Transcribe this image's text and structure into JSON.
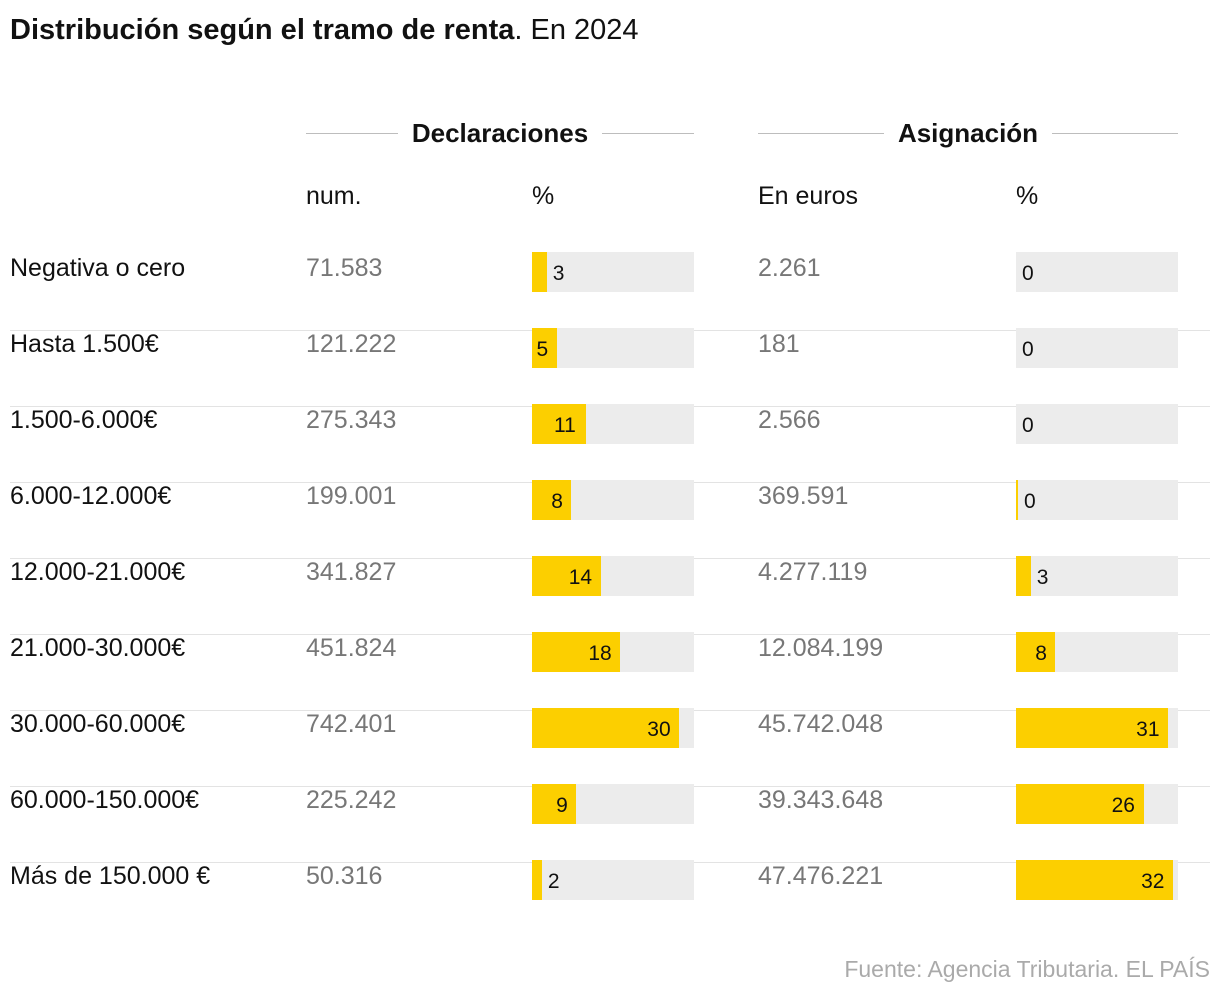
{
  "title": {
    "bold": "Distribución según el tramo de renta",
    "rest": ". En 2024"
  },
  "groups": {
    "declaraciones": "Declaraciones",
    "asignacion": "Asignación"
  },
  "columns": {
    "num": "num.",
    "pct1": "%",
    "euros": "En euros",
    "pct2": "%"
  },
  "colors": {
    "bar": "#fccf00",
    "track": "#ececec"
  },
  "chart_data": {
    "type": "table",
    "rows": [
      {
        "tramo": "Negativa o cero",
        "num": "71.583",
        "decl_pct": 3,
        "euros": "2.261",
        "asig_pct": 0
      },
      {
        "tramo": "Hasta 1.500€",
        "num": "121.222",
        "decl_pct": 5,
        "euros": "181",
        "asig_pct": 0
      },
      {
        "tramo": "1.500-6.000€",
        "num": "275.343",
        "decl_pct": 11,
        "euros": "2.566",
        "asig_pct": 0
      },
      {
        "tramo": "6.000-12.000€",
        "num": "199.001",
        "decl_pct": 8,
        "euros": "369.591",
        "asig_pct": 0
      },
      {
        "tramo": "12.000-21.000€",
        "num": "341.827",
        "decl_pct": 14,
        "euros": "4.277.119",
        "asig_pct": 3
      },
      {
        "tramo": "21.000-30.000€",
        "num": "451.824",
        "decl_pct": 18,
        "euros": "12.084.199",
        "asig_pct": 8
      },
      {
        "tramo": "30.000-60.000€",
        "num": "742.401",
        "decl_pct": 30,
        "euros": "45.742.048",
        "asig_pct": 31
      },
      {
        "tramo": "60.000-150.000€",
        "num": "225.242",
        "decl_pct": 9,
        "euros": "39.343.648",
        "asig_pct": 26
      },
      {
        "tramo": "Más de 150.000 €",
        "num": "50.316",
        "decl_pct": 2,
        "euros": "47.476.221",
        "asig_pct": 32
      }
    ],
    "pct_range": [
      0,
      33
    ]
  },
  "source": "Fuente: Agencia Tributaria. EL PAÍS"
}
